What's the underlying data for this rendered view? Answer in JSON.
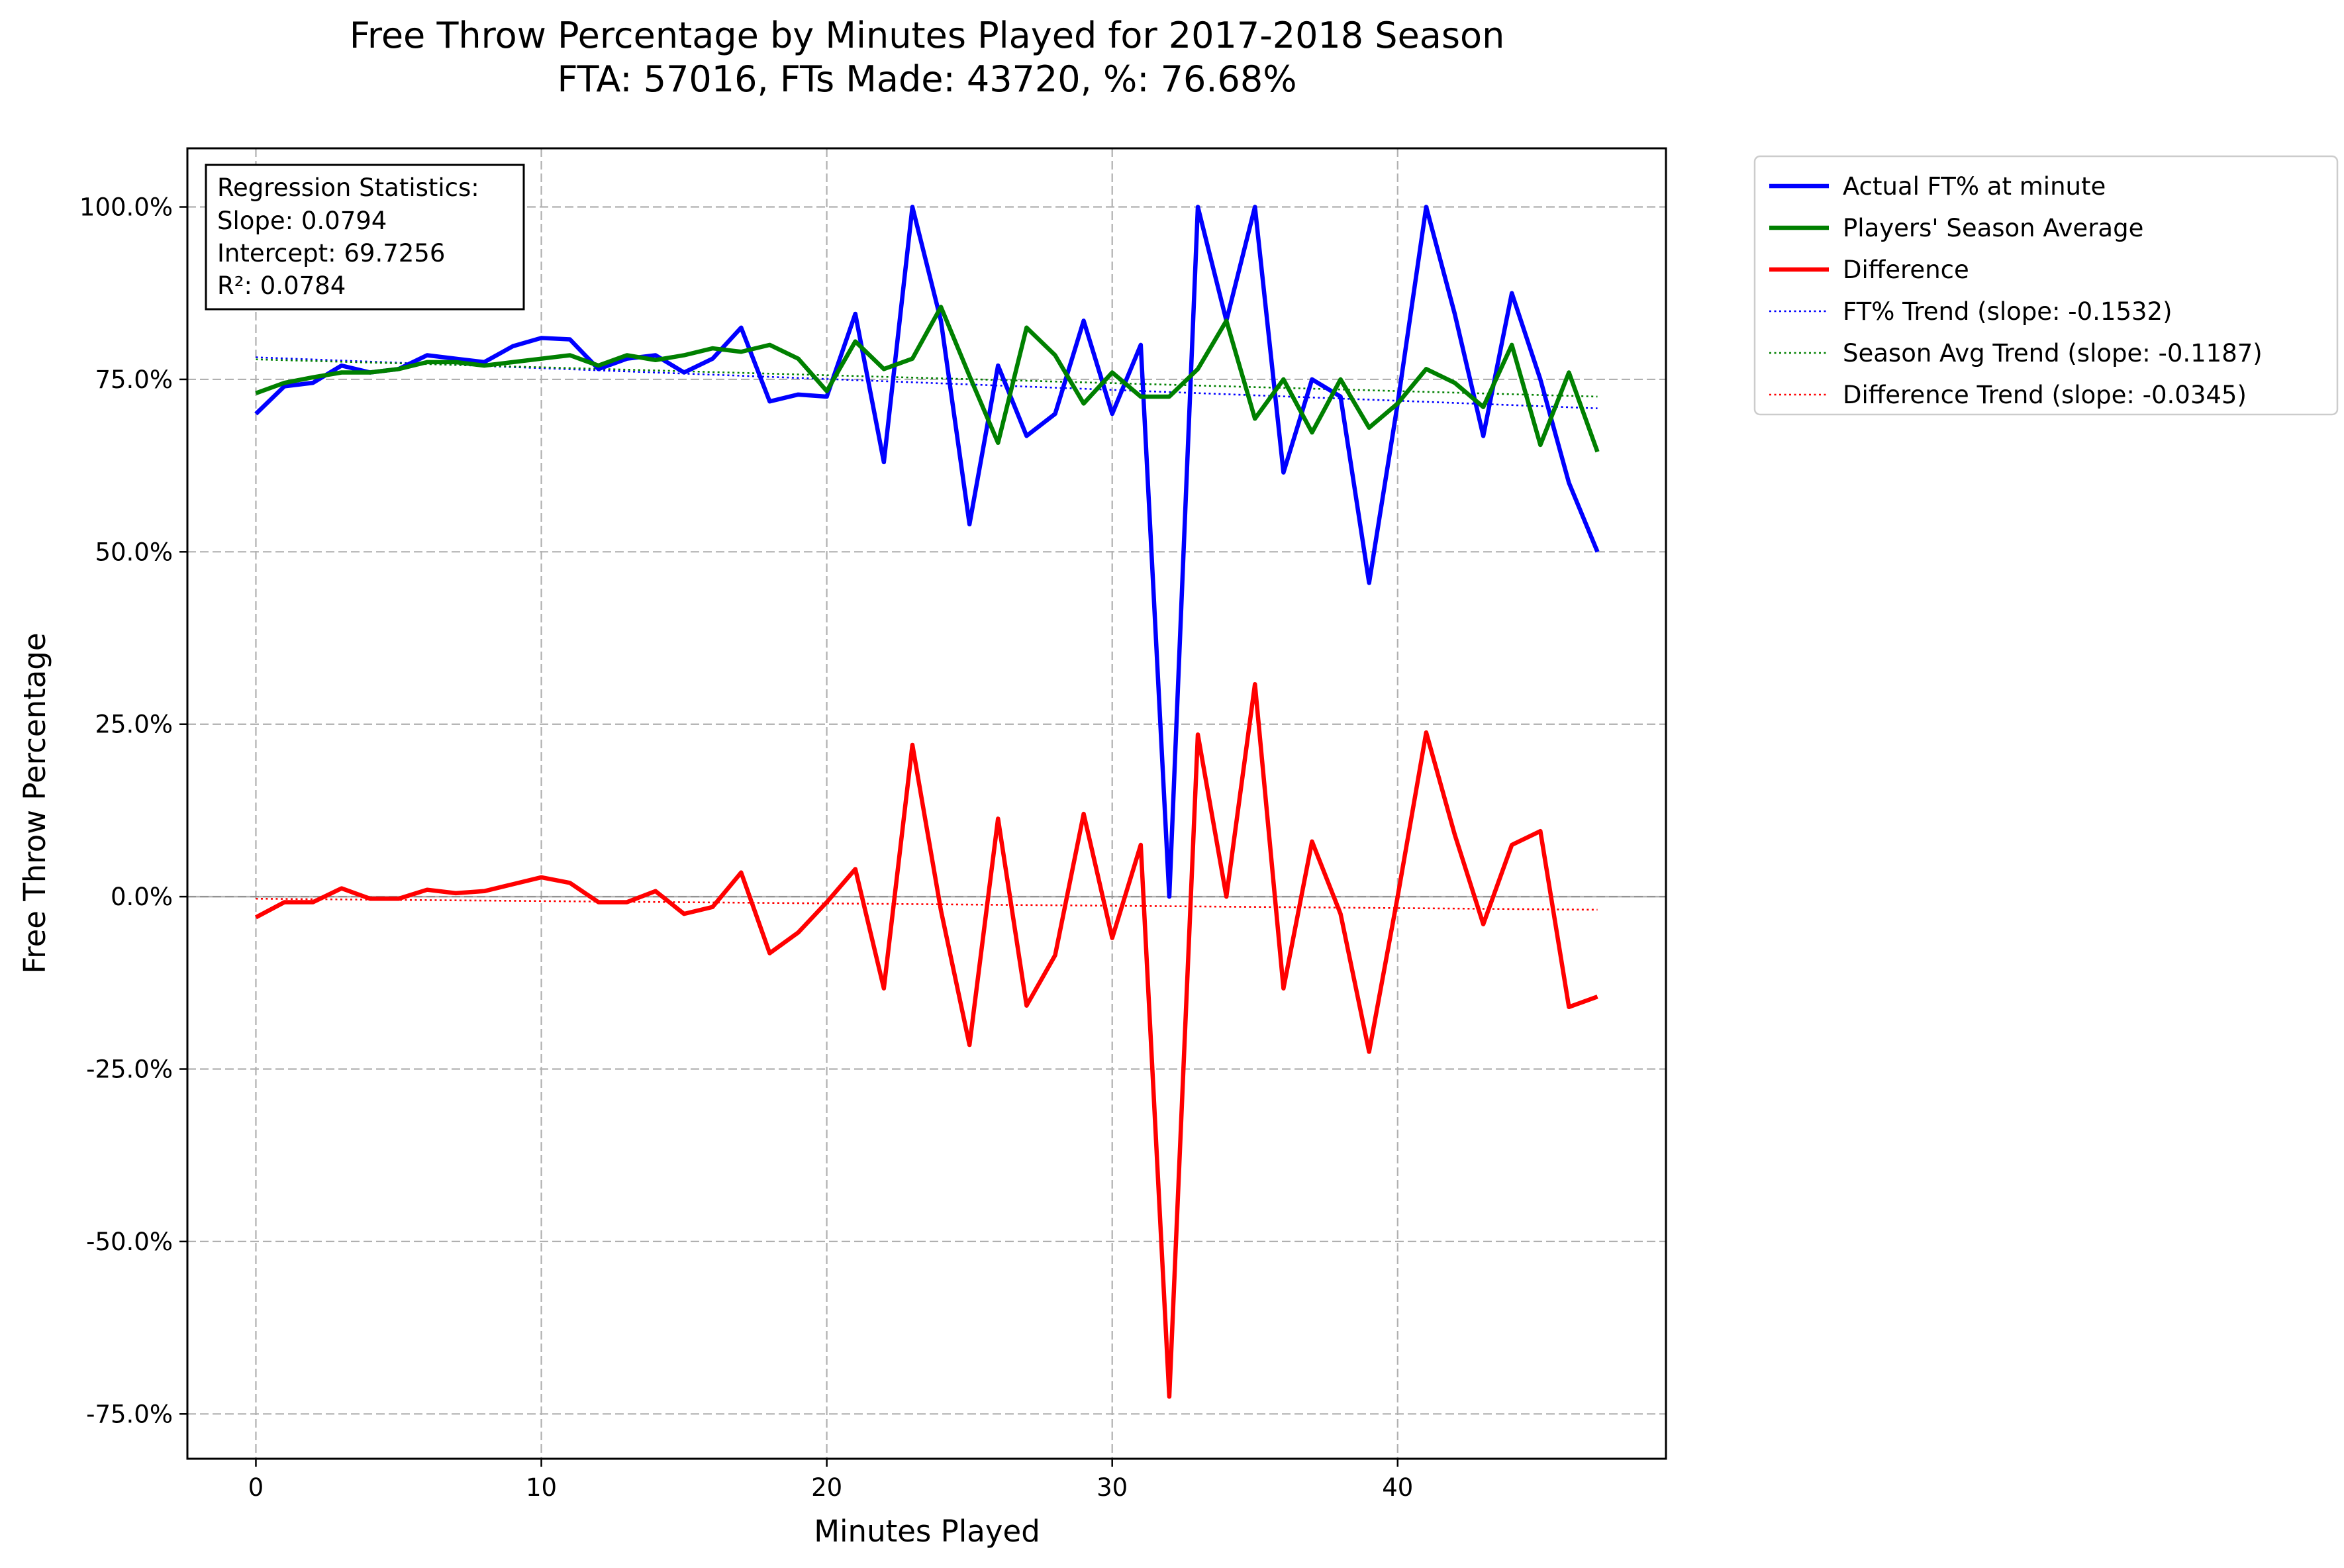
{
  "chart_data": {
    "type": "line",
    "title": "Free Throw Percentage by Minutes Played for 2017-2018 Season",
    "subtitle": "FTA: 57016, FTs Made: 43720, %: 76.68%",
    "xlabel": "Minutes Played",
    "ylabel": "Free Throw Percentage",
    "xlim": [
      -2.4,
      49.4
    ],
    "ylim": [
      -81.5,
      108.5
    ],
    "x_ticks": [
      0,
      10,
      20,
      30,
      40
    ],
    "y_ticks": [
      -75,
      -50,
      -25,
      0,
      25,
      50,
      75,
      100
    ],
    "y_tick_labels": [
      "-75.0%",
      "-50.0%",
      "-25.0%",
      "0.0%",
      "25.0%",
      "50.0%",
      "75.0%",
      "100.0%"
    ],
    "grid": true,
    "legend_position": "outside top-right",
    "stats_box": {
      "heading": "Regression Statistics:",
      "slope": "Slope: 0.0794",
      "intercept": "Intercept: 69.7256",
      "r2": "R²: 0.0784"
    },
    "x": [
      0,
      1,
      2,
      3,
      4,
      5,
      6,
      7,
      8,
      9,
      10,
      11,
      12,
      13,
      14,
      15,
      16,
      17,
      18,
      19,
      20,
      21,
      22,
      23,
      24,
      25,
      26,
      27,
      28,
      29,
      30,
      31,
      32,
      33,
      34,
      35,
      36,
      37,
      38,
      39,
      40,
      41,
      42,
      43,
      44,
      45,
      46,
      47
    ],
    "series": [
      {
        "name": "Actual FT% at minute",
        "color": "#0000ff",
        "style": "solid",
        "values": [
          70.0,
          74.0,
          74.5,
          77.0,
          76.0,
          76.5,
          78.5,
          78.0,
          77.5,
          79.8,
          81.0,
          80.8,
          76.5,
          78.0,
          78.5,
          76.0,
          78.0,
          82.5,
          71.8,
          72.8,
          72.5,
          84.5,
          63.0,
          100.0,
          83.5,
          54.0,
          77.0,
          66.8,
          70.0,
          83.5,
          70.0,
          80.0,
          0.0,
          100.0,
          83.5,
          100.0,
          61.5,
          75.0,
          72.5,
          45.5,
          71.5,
          100.0,
          84.5,
          66.8,
          87.5,
          75.0,
          60.0,
          50.0
        ]
      },
      {
        "name": "Players' Season Average",
        "color": "#008000",
        "style": "solid",
        "values": [
          73.0,
          74.5,
          75.3,
          76.0,
          76.0,
          76.5,
          77.5,
          77.5,
          77.0,
          77.5,
          78.0,
          78.5,
          77.0,
          78.5,
          77.8,
          78.5,
          79.5,
          79.0,
          80.0,
          78.0,
          73.3,
          80.5,
          76.5,
          78.0,
          85.5,
          75.5,
          65.8,
          82.5,
          78.5,
          71.5,
          76.0,
          72.5,
          72.5,
          76.5,
          83.5,
          69.3,
          75.0,
          67.3,
          75.0,
          68.0,
          71.5,
          76.5,
          74.5,
          71.0,
          80.0,
          65.5,
          76.0,
          64.5
        ]
      },
      {
        "name": "Difference",
        "color": "#ff0000",
        "style": "solid",
        "values": [
          -3.0,
          -0.8,
          -0.8,
          1.2,
          -0.3,
          -0.3,
          1.0,
          0.5,
          0.8,
          1.8,
          2.8,
          2.0,
          -0.8,
          -0.8,
          0.8,
          -2.5,
          -1.5,
          3.5,
          -8.2,
          -5.2,
          -0.8,
          4.0,
          -13.3,
          22.0,
          -2.0,
          -21.5,
          11.3,
          -15.8,
          -8.5,
          12.0,
          -6.0,
          7.5,
          -72.5,
          23.5,
          0.0,
          30.8,
          -13.3,
          8.0,
          -2.5,
          -22.5,
          0.0,
          23.8,
          9.0,
          -4.0,
          7.5,
          9.5,
          -16.0,
          -14.5
        ]
      }
    ],
    "trends": [
      {
        "name": "FT% Trend (slope: -0.1532)",
        "color": "#0000ff",
        "style": "dotted",
        "x": [
          0,
          47
        ],
        "values": [
          78.2,
          70.8
        ]
      },
      {
        "name": "Season Avg Trend (slope: -0.1187)",
        "color": "#008000",
        "style": "dotted",
        "x": [
          0,
          47
        ],
        "values": [
          77.9,
          72.5
        ]
      },
      {
        "name": "Difference Trend (slope: -0.0345)",
        "color": "#ff0000",
        "style": "dotted",
        "x": [
          0,
          47
        ],
        "values": [
          -0.3,
          -1.9
        ]
      }
    ],
    "zero_line": 0
  }
}
